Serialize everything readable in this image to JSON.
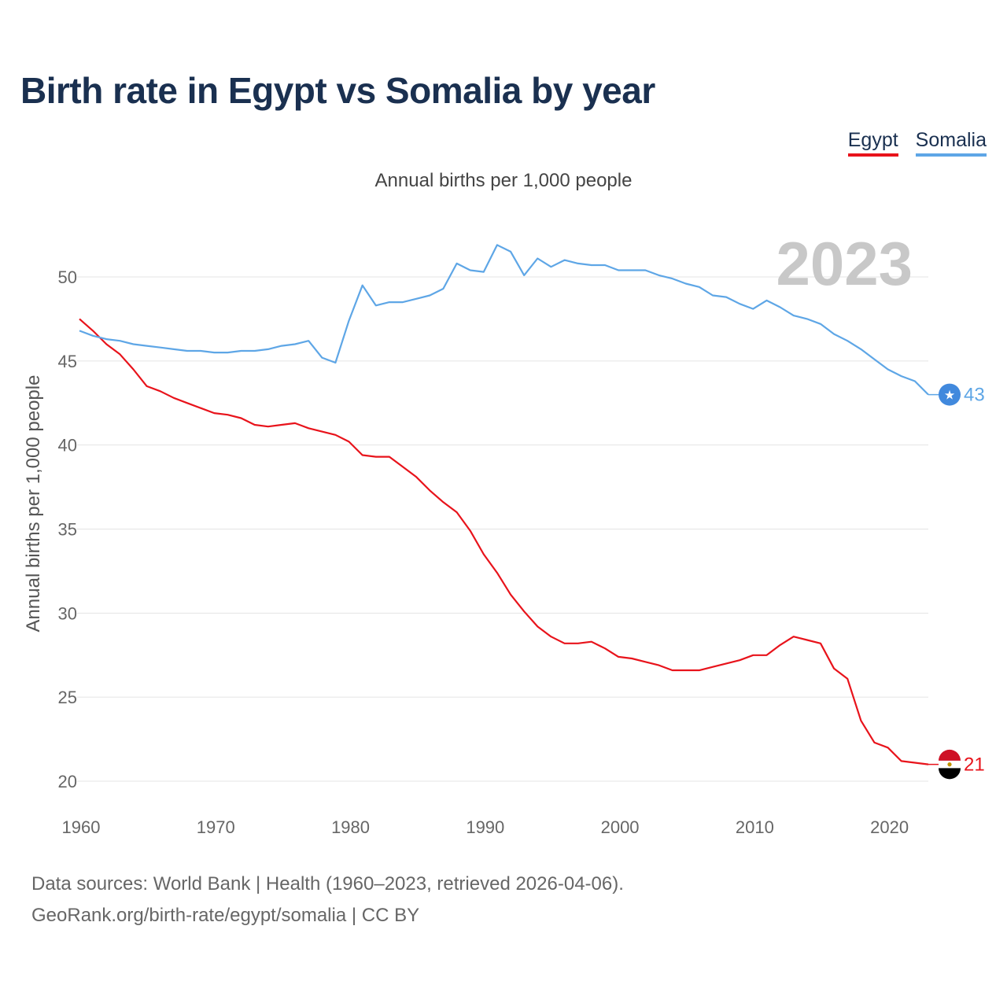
{
  "title": "Birth rate in Egypt vs Somalia by year",
  "legend": {
    "egypt": "Egypt",
    "somalia": "Somalia"
  },
  "subtitle": "Annual births per 1,000 people",
  "year_label": "2023",
  "colors": {
    "egypt": "#e8131b",
    "somalia": "#5ea6e6",
    "title": "#1a3050",
    "grid": "#e4e4e4",
    "year": "#c8c8c8"
  },
  "sources": {
    "line1": "Data sources: World Bank | Health (1960–2023, retrieved 2026-04-06).",
    "line2": "GeoRank.org/birth-rate/egypt/somalia | CC BY"
  },
  "chart_data": {
    "type": "line",
    "title": "Birth rate in Egypt vs Somalia by year",
    "xlabel": "",
    "ylabel": "Annual births per 1,000 people",
    "xlim": [
      1960,
      2023
    ],
    "ylim": [
      19,
      53
    ],
    "yticks": [
      20,
      25,
      30,
      35,
      40,
      45,
      50
    ],
    "xticks": [
      1960,
      1970,
      1980,
      1990,
      2000,
      2010,
      2020
    ],
    "grid": true,
    "legend_position": "top-right",
    "x": [
      1960,
      1961,
      1962,
      1963,
      1964,
      1965,
      1966,
      1967,
      1968,
      1969,
      1970,
      1971,
      1972,
      1973,
      1974,
      1975,
      1976,
      1977,
      1978,
      1979,
      1980,
      1981,
      1982,
      1983,
      1984,
      1985,
      1986,
      1987,
      1988,
      1989,
      1990,
      1991,
      1992,
      1993,
      1994,
      1995,
      1996,
      1997,
      1998,
      1999,
      2000,
      2001,
      2002,
      2003,
      2004,
      2005,
      2006,
      2007,
      2008,
      2009,
      2010,
      2011,
      2012,
      2013,
      2014,
      2015,
      2016,
      2017,
      2018,
      2019,
      2020,
      2021,
      2022,
      2023
    ],
    "series": [
      {
        "name": "Egypt",
        "color": "#e8131b",
        "end_label": "21",
        "values": [
          47.5,
          46.8,
          46.0,
          45.4,
          44.5,
          43.5,
          43.2,
          42.8,
          42.5,
          42.2,
          41.9,
          41.8,
          41.6,
          41.2,
          41.1,
          41.2,
          41.3,
          41.0,
          40.8,
          40.6,
          40.2,
          39.4,
          39.3,
          39.3,
          38.7,
          38.1,
          37.3,
          36.6,
          36.0,
          34.9,
          33.5,
          32.4,
          31.1,
          30.1,
          29.2,
          28.6,
          28.2,
          28.2,
          28.3,
          27.9,
          27.4,
          27.3,
          27.1,
          26.9,
          26.6,
          26.6,
          26.6,
          26.8,
          27.0,
          27.2,
          27.5,
          27.5,
          28.1,
          28.6,
          28.4,
          28.2,
          26.7,
          26.1,
          23.6,
          22.3,
          22.0,
          21.2,
          21.1,
          21.0
        ]
      },
      {
        "name": "Somalia",
        "color": "#5ea6e6",
        "end_label": "43",
        "values": [
          46.8,
          46.5,
          46.3,
          46.2,
          46.0,
          45.9,
          45.8,
          45.7,
          45.6,
          45.6,
          45.5,
          45.5,
          45.6,
          45.6,
          45.7,
          45.9,
          46.0,
          46.2,
          45.2,
          44.9,
          47.4,
          49.5,
          48.3,
          48.5,
          48.5,
          48.7,
          48.9,
          49.3,
          50.8,
          50.4,
          50.3,
          51.9,
          51.5,
          50.1,
          51.1,
          50.6,
          51.0,
          50.8,
          50.7,
          50.7,
          50.4,
          50.4,
          50.4,
          50.1,
          49.9,
          49.6,
          49.4,
          48.9,
          48.8,
          48.4,
          48.1,
          48.6,
          48.2,
          47.7,
          47.5,
          47.2,
          46.6,
          46.2,
          45.7,
          45.1,
          44.5,
          44.1,
          43.8,
          43.0
        ]
      }
    ]
  }
}
